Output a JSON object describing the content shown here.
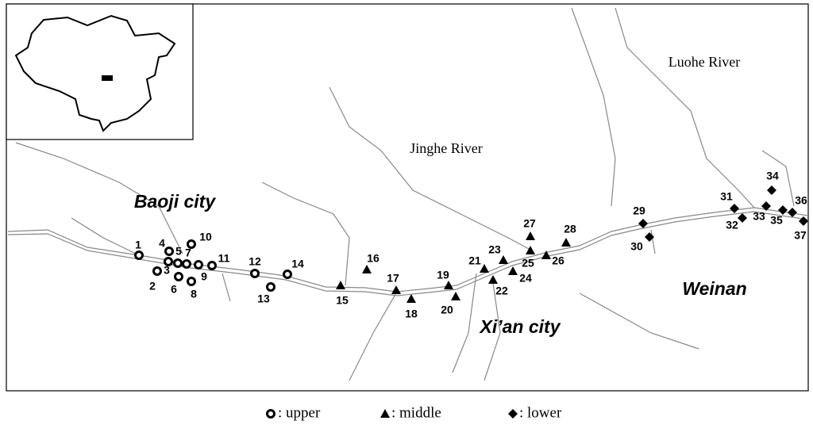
{
  "map": {
    "labels": {
      "luohe": "Luohe River",
      "jinghe": "Jinghe River",
      "baoji": "Baoji city",
      "xian": "Xi’an city",
      "weinan": "Weinan"
    },
    "groups": [
      {
        "legend": ": upper",
        "sites": [
          "1",
          "2",
          "3",
          "4",
          "5",
          "6",
          "7",
          "8",
          "9",
          "10",
          "11",
          "12",
          "13",
          "14"
        ]
      },
      {
        "legend": ": middle",
        "sites": [
          "15",
          "16",
          "17",
          "18",
          "19",
          "20",
          "21",
          "22",
          "23",
          "24",
          "25",
          "26",
          "27",
          "28"
        ]
      },
      {
        "legend": ": lower",
        "sites": [
          "29",
          "30",
          "31",
          "32",
          "33",
          "34",
          "35",
          "36",
          "37"
        ]
      }
    ]
  }
}
